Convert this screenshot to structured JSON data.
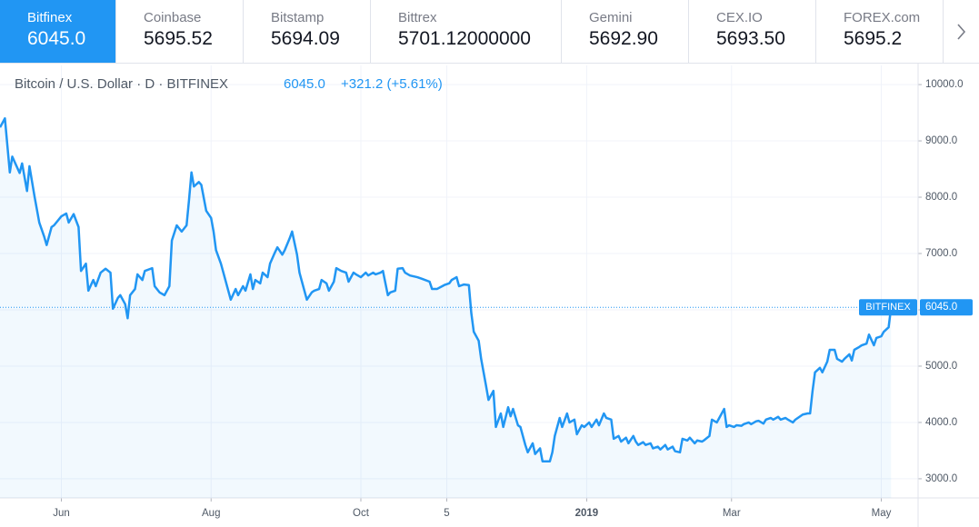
{
  "tabs": [
    {
      "name": "Bitfinex",
      "price": "6045.0"
    },
    {
      "name": "Coinbase",
      "price": "5695.52"
    },
    {
      "name": "Bitstamp",
      "price": "5694.09"
    },
    {
      "name": "Bittrex",
      "price": "5701.12000000"
    },
    {
      "name": "Gemini",
      "price": "5692.90"
    },
    {
      "name": "CEX.IO",
      "price": "5693.50"
    },
    {
      "name": "FOREX.com",
      "price": "5695.2"
    }
  ],
  "chart_data": {
    "type": "area",
    "title": "Bitcoin / U.S. Dollar · D · BITFINEX",
    "last_price": "6045.0",
    "change": "+321.2 (+5.61%)",
    "axis_tag": "BITFINEX",
    "last_label": "6045.0",
    "color": "#2196f3",
    "grid": true,
    "x": [
      -25,
      -23,
      -21,
      -20,
      -17,
      -16,
      -14,
      -13,
      -11,
      -9,
      -7,
      -6,
      -4,
      -3,
      0,
      2,
      3,
      5,
      7,
      8,
      10,
      11,
      13,
      14,
      16,
      18,
      20,
      21,
      23,
      24,
      26,
      27,
      28,
      30,
      31,
      33,
      34,
      37,
      38,
      40,
      42,
      44,
      45,
      47,
      49,
      51,
      52,
      53,
      54,
      56,
      57,
      59,
      61,
      62,
      63,
      65,
      66,
      68,
      69,
      71,
      72,
      74,
      75,
      77,
      78,
      79,
      81,
      82,
      84,
      85,
      87,
      88,
      90,
      91,
      93,
      94,
      96,
      97,
      99,
      100,
      102,
      103,
      105,
      106,
      108,
      109,
      111,
      112,
      114,
      116,
      117,
      119,
      120,
      122,
      124,
      125,
      127,
      128,
      130,
      131,
      133,
      134,
      136,
      137,
      139,
      140,
      142,
      145,
      147,
      150,
      151,
      153,
      156,
      158,
      159,
      161,
      162,
      164,
      166,
      167,
      168,
      170,
      171,
      173,
      174,
      176,
      177,
      179,
      180,
      182,
      183,
      184,
      186,
      187,
      189,
      190,
      192,
      193,
      195,
      196,
      199,
      200,
      201,
      203,
      204,
      206,
      207,
      209,
      210,
      212,
      213,
      215,
      216,
      218,
      219,
      221,
      222,
      224,
      225,
      227,
      228,
      230,
      231,
      233,
      234,
      235,
      237,
      238,
      240,
      241,
      243,
      244,
      246,
      247,
      249,
      250,
      252,
      253,
      255,
      256,
      258,
      259,
      261,
      262,
      264,
      265,
      267,
      268,
      270,
      271,
      272,
      274,
      275,
      277,
      278,
      280,
      281,
      283,
      284,
      286,
      287,
      289,
      290,
      292,
      293,
      295,
      296,
      298,
      299,
      301,
      302,
      304,
      305,
      306,
      307,
      309,
      310,
      312,
      313,
      315,
      316,
      318,
      319,
      321,
      322,
      323,
      325,
      326,
      328,
      329,
      331,
      332,
      334,
      335,
      337,
      338
    ],
    "values": [
      9240,
      9400,
      8440,
      8720,
      8430,
      8600,
      8110,
      8550,
      8030,
      7550,
      7300,
      7150,
      7470,
      7500,
      7660,
      7710,
      7550,
      7700,
      7470,
      6690,
      6820,
      6340,
      6530,
      6420,
      6660,
      6730,
      6660,
      6020,
      6210,
      6260,
      6100,
      5850,
      6260,
      6370,
      6630,
      6530,
      6690,
      6740,
      6420,
      6310,
      6260,
      6420,
      7230,
      7500,
      7390,
      7500,
      7950,
      8440,
      8190,
      8270,
      8220,
      7760,
      7630,
      7390,
      7060,
      6820,
      6660,
      6340,
      6180,
      6370,
      6260,
      6420,
      6340,
      6630,
      6370,
      6530,
      6470,
      6660,
      6580,
      6820,
      7020,
      7110,
      6980,
      7060,
      7270,
      7390,
      6980,
      6660,
      6340,
      6180,
      6310,
      6340,
      6370,
      6530,
      6470,
      6340,
      6500,
      6740,
      6690,
      6660,
      6500,
      6660,
      6630,
      6580,
      6660,
      6610,
      6660,
      6630,
      6660,
      6690,
      6260,
      6310,
      6340,
      6730,
      6740,
      6660,
      6610,
      6580,
      6550,
      6500,
      6370,
      6370,
      6440,
      6470,
      6530,
      6580,
      6420,
      6450,
      6440,
      5940,
      5610,
      5450,
      5130,
      4650,
      4400,
      4560,
      3920,
      4160,
      3920,
      4270,
      4110,
      4240,
      3950,
      3920,
      3600,
      3470,
      3630,
      3440,
      3540,
      3310,
      3310,
      3470,
      3760,
      4080,
      3920,
      4160,
      4000,
      4050,
      3790,
      3950,
      3920,
      4000,
      3920,
      4050,
      3950,
      4160,
      4080,
      4050,
      3710,
      3760,
      3660,
      3730,
      3630,
      3760,
      3660,
      3600,
      3650,
      3600,
      3630,
      3540,
      3570,
      3520,
      3600,
      3520,
      3570,
      3490,
      3470,
      3710,
      3680,
      3730,
      3630,
      3680,
      3660,
      3690,
      3760,
      4050,
      4000,
      4080,
      4240,
      3920,
      3950,
      3920,
      3950,
      3940,
      3970,
      4000,
      3970,
      4020,
      4030,
      3980,
      4050,
      4080,
      4050,
      4100,
      4050,
      4080,
      4050,
      4000,
      4050,
      4110,
      4140,
      4160,
      4160,
      4560,
      4890,
      4970,
      4890,
      5080,
      5290,
      5290,
      5130,
      5080,
      5130,
      5210,
      5100,
      5290,
      5340,
      5370,
      5400,
      5560,
      5370,
      5500,
      5530,
      5610,
      5690,
      6045
    ],
    "xlim": [
      -25,
      349
    ],
    "xticks": [
      {
        "value": 0,
        "label": "Jun"
      },
      {
        "value": 61,
        "label": "Aug"
      },
      {
        "value": 122,
        "label": "Oct"
      },
      {
        "value": 157,
        "label": "5"
      },
      {
        "value": 214,
        "label": "2019"
      },
      {
        "value": 273,
        "label": "Mar"
      },
      {
        "value": 334,
        "label": "May"
      }
    ],
    "ylim": [
      2660,
      10340
    ],
    "yticks": [
      {
        "value": 3000,
        "label": "3000.0"
      },
      {
        "value": 4000,
        "label": "4000.0"
      },
      {
        "value": 5000,
        "label": "5000.0"
      },
      {
        "value": 6000,
        "label": "6000.0"
      },
      {
        "value": 7000,
        "label": "7000.0"
      },
      {
        "value": 8000,
        "label": "8000.0"
      },
      {
        "value": 9000,
        "label": "9000.0"
      },
      {
        "value": 10000,
        "label": "10000.0"
      }
    ]
  }
}
